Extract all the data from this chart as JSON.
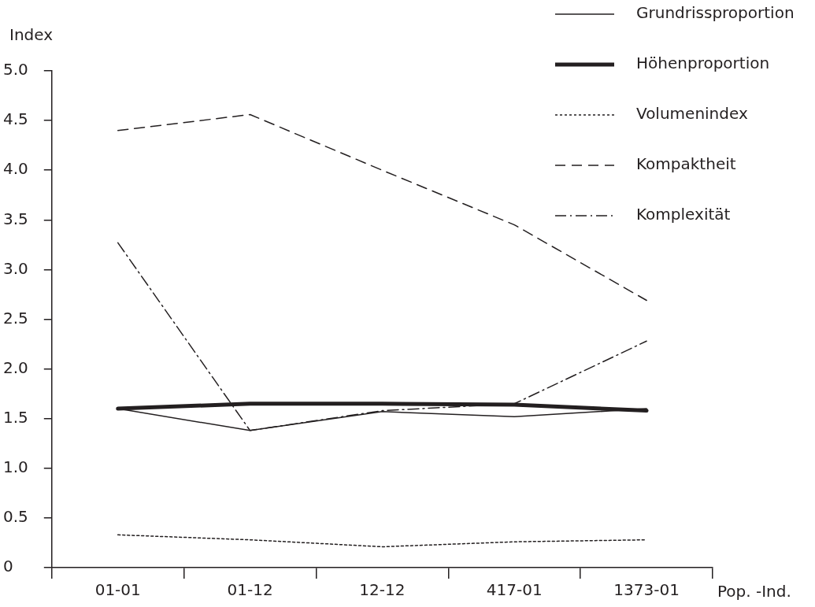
{
  "chart_data": {
    "type": "line",
    "xlabel": "Pop. -Ind.",
    "ylabel": "Index",
    "categories": [
      "01-01",
      "01-12",
      "12-12",
      "417-01",
      "1373-01"
    ],
    "ylim": [
      0,
      5
    ],
    "yticks": [
      0,
      {
        "value": 0.5,
        "label": "0.5"
      },
      {
        "value": 1,
        "label": "1.0"
      },
      {
        "value": 1.5,
        "label": "1.5"
      },
      {
        "value": 2,
        "label": "2.0"
      },
      {
        "value": 2.5,
        "label": "2.5"
      },
      {
        "value": 3,
        "label": "3.0"
      },
      {
        "value": 3.5,
        "label": "3.5"
      },
      {
        "value": 4,
        "label": "4.0"
      },
      {
        "value": 4.5,
        "label": "4.5"
      },
      {
        "value": 5,
        "label": "5.0"
      }
    ],
    "grid": false,
    "legend": "top right",
    "marker": "none",
    "series": [
      {
        "name": "Grundrissproportion",
        "color": "#231f20",
        "line_style": "solid",
        "values": [
          1.6,
          1.38,
          1.57,
          1.52,
          1.6
        ]
      },
      {
        "name": "Höhenproportion",
        "color": "#231f20",
        "line_style": "solid",
        "values": [
          1.6,
          1.65,
          1.65,
          1.64,
          1.58
        ]
      },
      {
        "name": "Volumenindex",
        "color": "#231f20",
        "line_style": "dotted",
        "values": [
          0.33,
          0.28,
          0.21,
          0.26,
          0.28
        ]
      },
      {
        "name": "Kompaktheit",
        "color": "#231f20",
        "line_style": "dashed",
        "values": [
          4.4,
          4.56,
          4.0,
          3.45,
          2.69
        ]
      },
      {
        "name": "Komplexität",
        "color": "#231f20",
        "line_style": "dashdot",
        "values": [
          3.27,
          1.38,
          1.58,
          1.65,
          2.28
        ]
      }
    ]
  }
}
